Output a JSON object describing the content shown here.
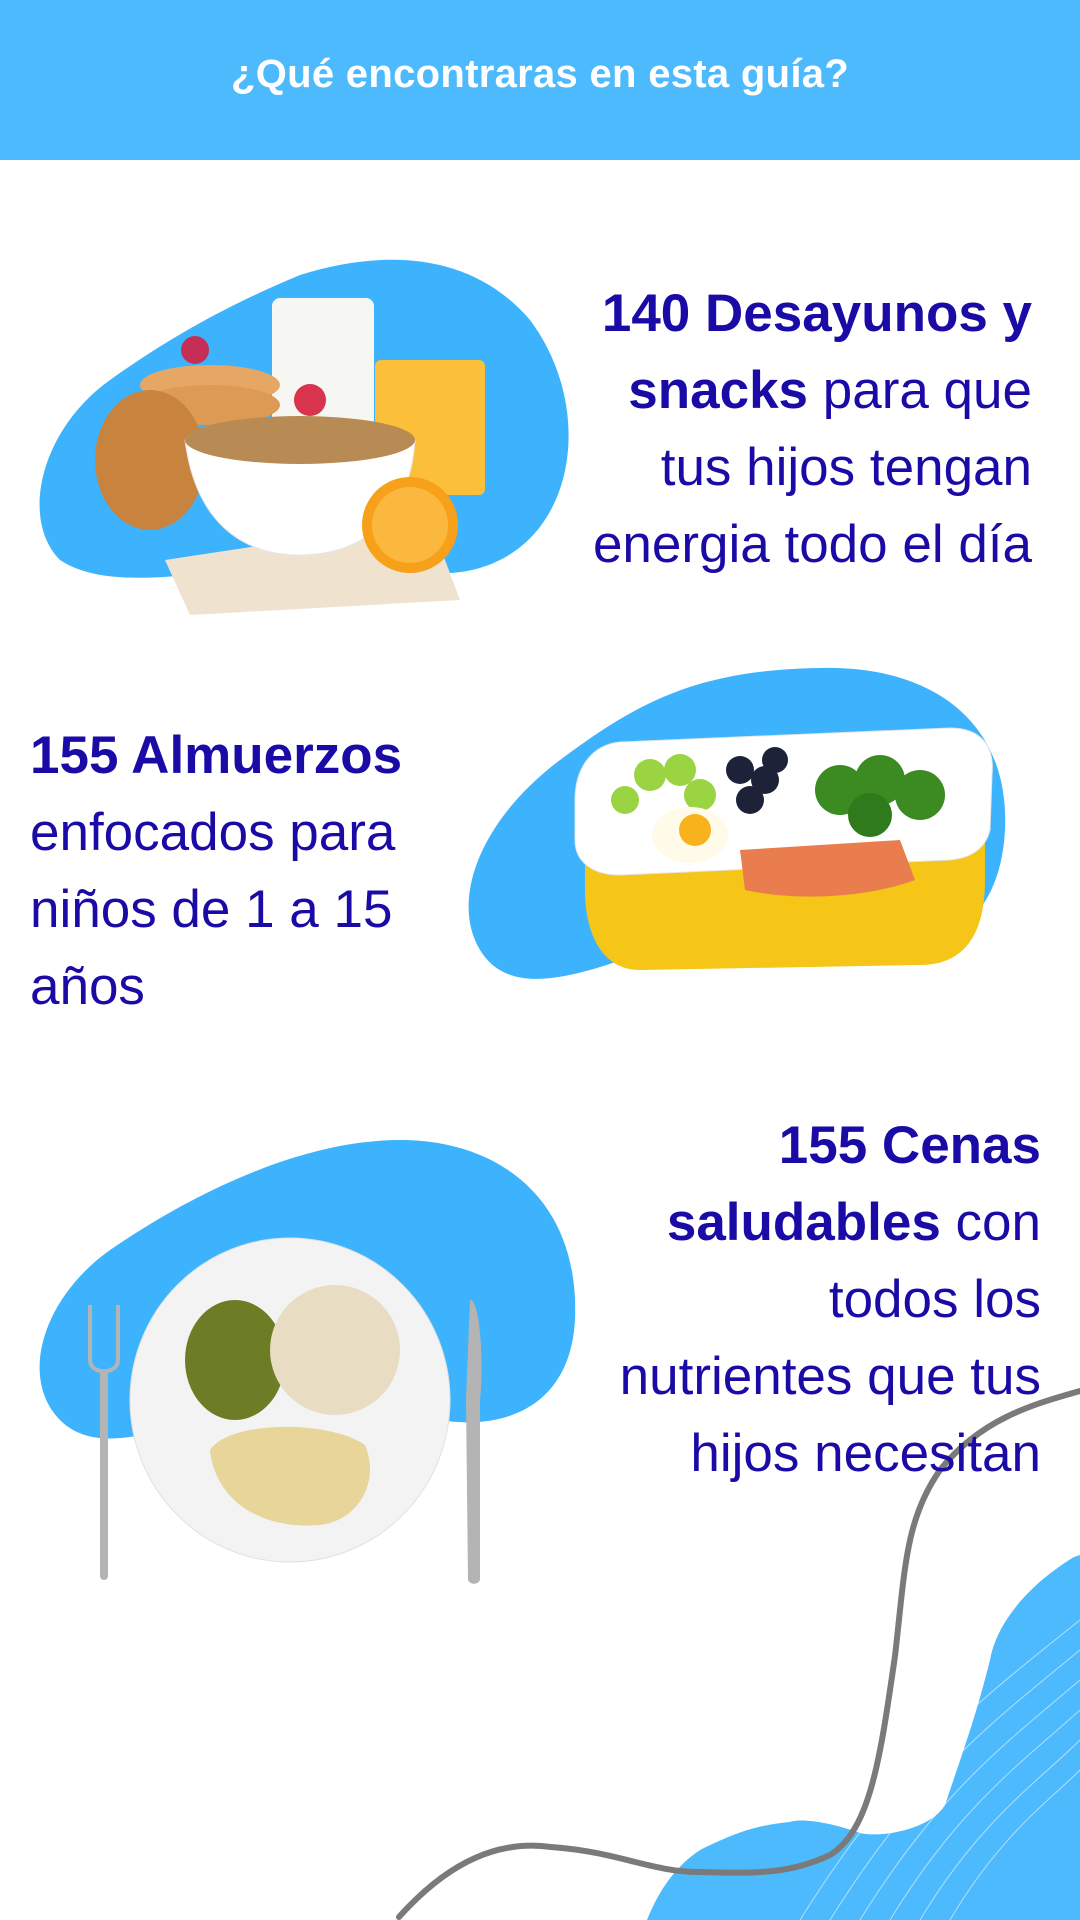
{
  "header": {
    "title": "¿Qué encontraras en esta guía?"
  },
  "colors": {
    "header": "#4dbafd",
    "blob": "#3db3fd",
    "text": "#1a0ba6",
    "curve": "#7a7a7a"
  },
  "sections": [
    {
      "image": "breakfast-food-photo",
      "lines": [
        {
          "bold": "140 Desayunos y",
          "text": ""
        },
        {
          "bold": "snacks",
          "text": " para que"
        },
        {
          "bold": "",
          "text": "tus hijos tengan"
        },
        {
          "bold": "",
          "text": "energia todo el día"
        }
      ]
    },
    {
      "image": "lunchbox-food-photo",
      "lines": [
        {
          "bold": "155 Almuerzos",
          "text": ""
        },
        {
          "bold": "",
          "text": "enfocados para"
        },
        {
          "bold": "",
          "text": "niños de 1 a 15"
        },
        {
          "bold": "",
          "text": "años"
        }
      ]
    },
    {
      "image": "dinner-plate-photo",
      "lines": [
        {
          "bold": "155 Cenas",
          "text": ""
        },
        {
          "bold": "saludables",
          "text": " con"
        },
        {
          "bold": "",
          "text": "todos los"
        },
        {
          "bold": "",
          "text": "nutrientes que tus"
        },
        {
          "bold": "",
          "text": "hijos necesitan"
        }
      ]
    }
  ]
}
